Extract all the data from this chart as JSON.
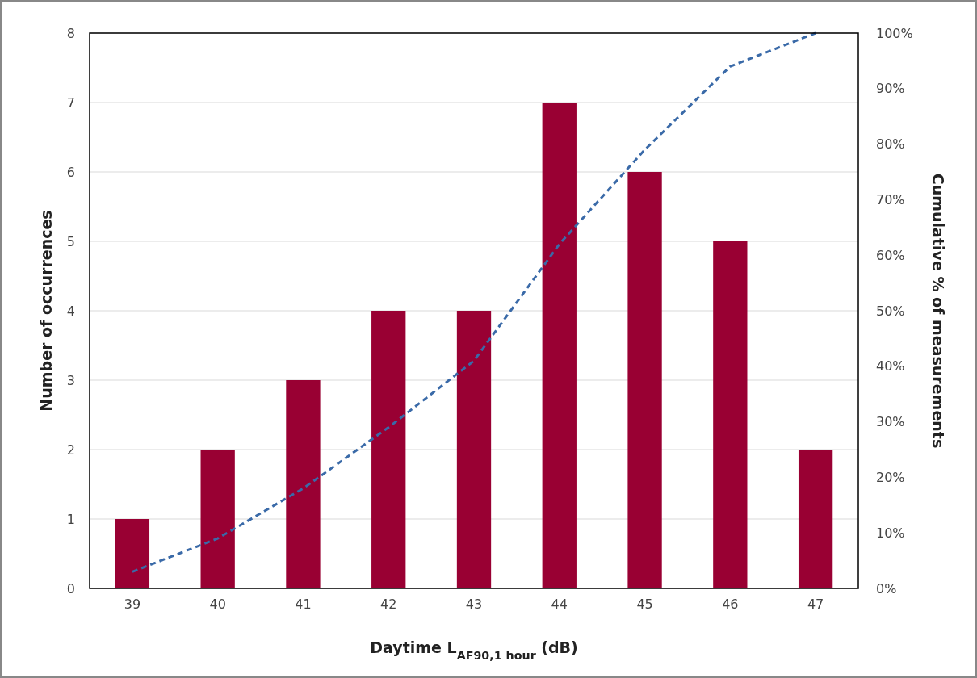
{
  "chart_data": {
    "type": "bar",
    "xlabel": "Daytime L$_{AF90,1 hour}$ (dB)",
    "ylabel": "Number of occurrences",
    "y2label": "Cumulative % of measurements",
    "categories": [
      "39",
      "40",
      "41",
      "42",
      "43",
      "44",
      "45",
      "46",
      "47"
    ],
    "series": [
      {
        "color": "#990033",
        "values": [
          1,
          2,
          3,
          4,
          4,
          7,
          6,
          5,
          2
        ]
      },
      {
        "type": "line",
        "axis": "y2",
        "color": "#3a6aa8",
        "line_style": "dashed",
        "values": [
          3,
          9,
          18,
          29,
          41,
          62,
          79,
          94,
          100
        ]
      }
    ],
    "ylim": [
      0,
      8
    ],
    "yticks": [
      0,
      1,
      2,
      3,
      4,
      5,
      6,
      7,
      8
    ],
    "y2lim": [
      0,
      100
    ],
    "y2ticks": [
      {
        "value": 0,
        "label": "0%"
      },
      {
        "value": 10,
        "label": "10%"
      },
      {
        "value": 20,
        "label": "20%"
      },
      {
        "value": 30,
        "label": "30%"
      },
      {
        "value": 40,
        "label": "40%"
      },
      {
        "value": 50,
        "label": "50%"
      },
      {
        "value": 60,
        "label": "60%"
      },
      {
        "value": 70,
        "label": "70%"
      },
      {
        "value": 80,
        "label": "80%"
      },
      {
        "value": 90,
        "label": "90%"
      },
      {
        "value": 100,
        "label": "100%"
      }
    ],
    "grid": "y"
  }
}
